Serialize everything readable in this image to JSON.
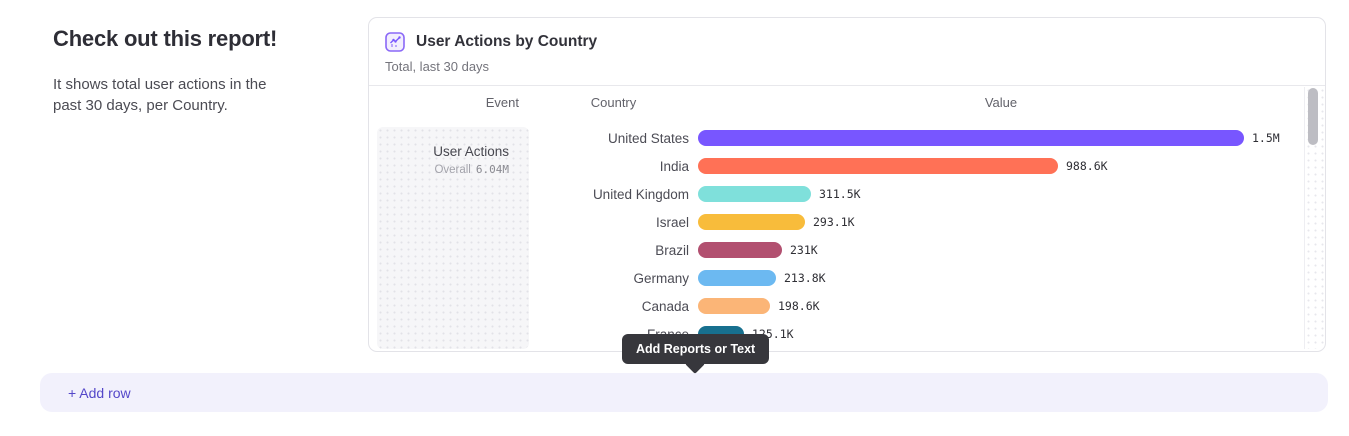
{
  "intro": {
    "heading": "Check out this report!",
    "description": "It shows total user actions in the past 30 days, per Country."
  },
  "card": {
    "title": "User Actions by Country",
    "subtitle": "Total, last 30 days",
    "icon": "line-chart-icon"
  },
  "table": {
    "headers": {
      "event": "Event",
      "country": "Country",
      "value": "Value"
    },
    "event_cell": {
      "name": "User Actions",
      "overall_label": "Overall",
      "overall_value": "6.04M"
    }
  },
  "tooltip": {
    "label": "Add Reports or Text"
  },
  "add_row": {
    "label": "+ Add row"
  },
  "colors": {
    "accent_purple": "#7856ff",
    "tooltip_bg": "#37373c",
    "add_row_bg": "#f2f1fc",
    "add_row_text": "#5447c9",
    "card_border": "#e3e3e8",
    "scroll_thumb": "#bdbdc3"
  },
  "chart_data": {
    "type": "bar",
    "orientation": "horizontal",
    "title": "User Actions by Country",
    "subtitle": "Total, last 30 days",
    "event": "User Actions",
    "overall_total": "6.04M",
    "categories": [
      "United States",
      "India",
      "United Kingdom",
      "Israel",
      "Brazil",
      "Germany",
      "Canada",
      "France"
    ],
    "values": [
      1500000,
      988600,
      311500,
      293100,
      231000,
      213800,
      198600,
      125100
    ],
    "value_labels": [
      "1.5M",
      "988.6K",
      "311.5K",
      "293.1K",
      "231K",
      "213.8K",
      "198.6K",
      "125.1K"
    ],
    "bar_colors": [
      "#7856ff",
      "#ff7156",
      "#7fe0db",
      "#f8bc3b",
      "#b25070",
      "#6cb9f1",
      "#fbb577",
      "#17708f"
    ],
    "xlim": [
      0,
      1500000
    ],
    "grid": false,
    "legend": false
  }
}
